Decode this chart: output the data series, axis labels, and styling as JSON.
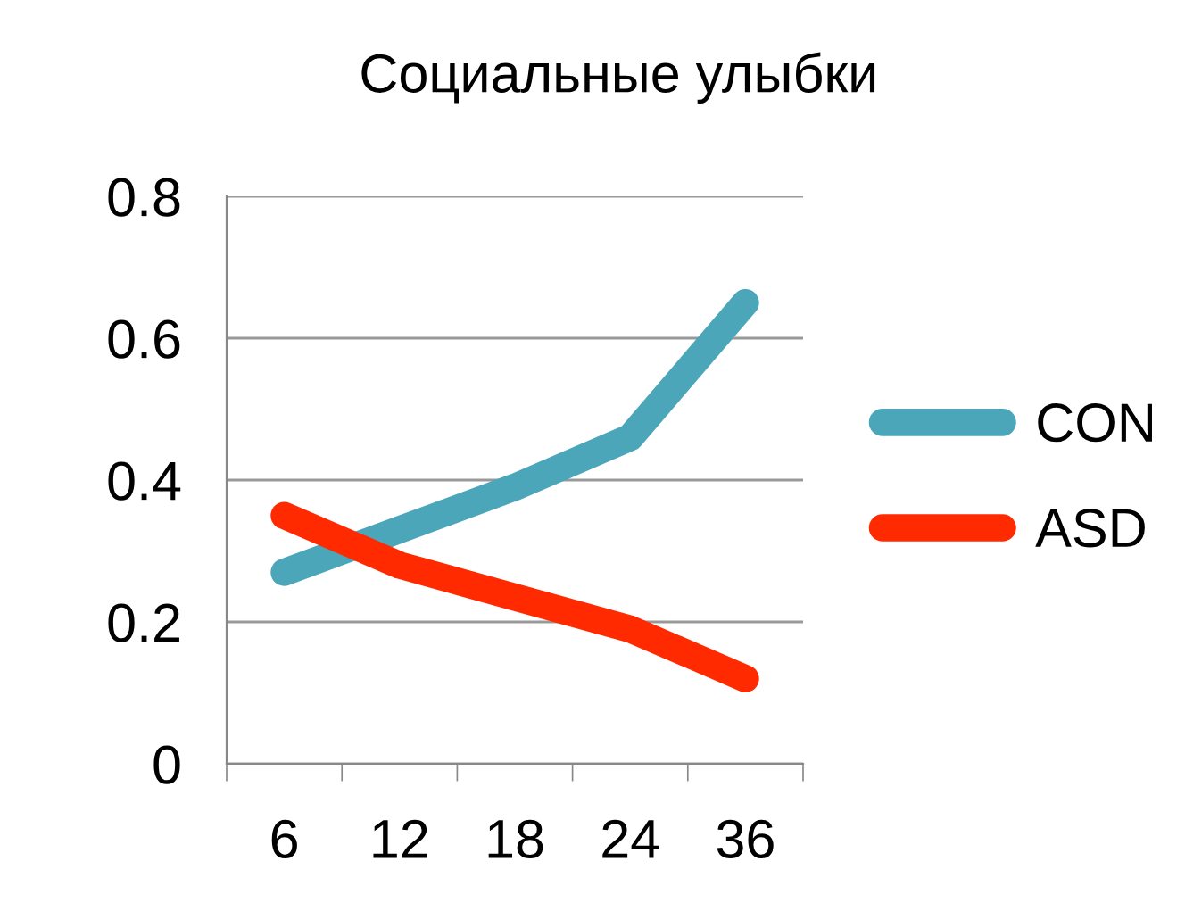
{
  "chart_data": {
    "type": "line",
    "title": "Социальные улыбки",
    "categories": [
      "6",
      "12",
      "18",
      "24",
      "36"
    ],
    "series": [
      {
        "name": "CON",
        "color": "#4aa6b8",
        "values": [
          0.27,
          0.33,
          0.39,
          0.46,
          0.65
        ]
      },
      {
        "name": "ASD",
        "color": "#ff2a00",
        "values": [
          0.35,
          0.28,
          0.235,
          0.19,
          0.12
        ]
      }
    ],
    "ylim": [
      0,
      0.8
    ],
    "yticks": [
      0,
      0.2,
      0.4,
      0.6,
      0.8
    ],
    "grid": "y",
    "legend": "right",
    "line_style": "solid"
  }
}
